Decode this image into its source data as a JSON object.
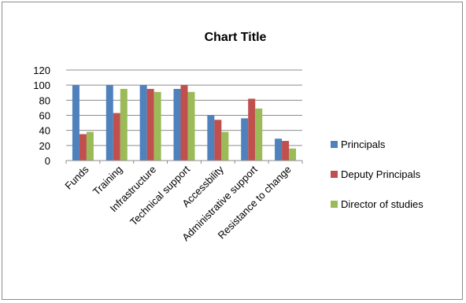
{
  "chart_data": {
    "type": "bar",
    "title": "Chart Title",
    "xlabel": "",
    "ylabel": "",
    "ylim": [
      0,
      120
    ],
    "yticks": [
      0,
      20,
      40,
      60,
      80,
      100,
      120
    ],
    "grid": true,
    "legend_position": "right",
    "categories": [
      "Funds",
      "Training",
      "Infrastructure",
      "Technical support",
      "Accessbility",
      "Administrative support",
      "Resistance to change"
    ],
    "series": [
      {
        "name": "Principals",
        "color": "#4f81bd",
        "values": [
          100,
          100,
          100,
          95,
          60,
          56,
          29
        ]
      },
      {
        "name": "Deputy Principals",
        "color": "#c0504d",
        "values": [
          35,
          63,
          95,
          100,
          54,
          82,
          26
        ]
      },
      {
        "name": "Director of studies",
        "color": "#9bbb59",
        "values": [
          38,
          95,
          91,
          91,
          38,
          69,
          16
        ]
      }
    ]
  }
}
